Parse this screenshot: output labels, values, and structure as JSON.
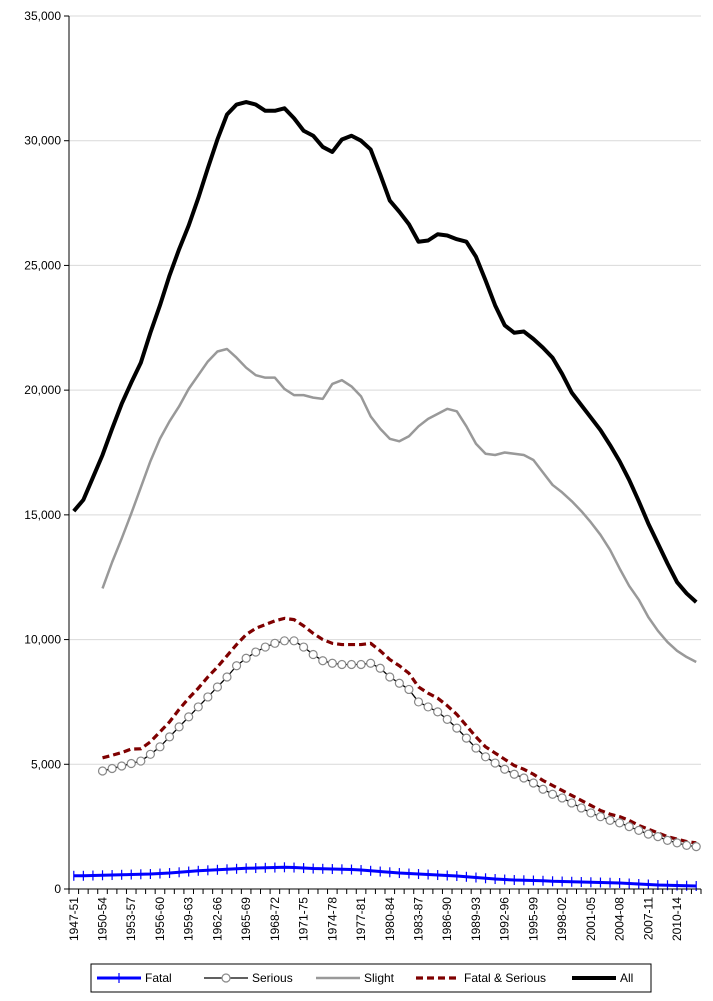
{
  "chart_data": {
    "type": "line",
    "title": "",
    "xlabel": "",
    "ylabel": "",
    "ylim": [
      0,
      35000
    ],
    "yticks": [
      "0",
      "5,000",
      "10,000",
      "15,000",
      "20,000",
      "25,000",
      "30,000",
      "35,000"
    ],
    "ytick_values": [
      0,
      5000,
      10000,
      15000,
      20000,
      25000,
      30000,
      35000
    ],
    "grid": "horizontal",
    "legend_position": "bottom",
    "x": [
      "1947-51",
      "1948-52",
      "1949-53",
      "1950-54",
      "1951-55",
      "1952-56",
      "1953-57",
      "1954-58",
      "1955-59",
      "1956-60",
      "1957-61",
      "1958-62",
      "1959-63",
      "1960-64",
      "1961-65",
      "1962-66",
      "1963-67",
      "1964-68",
      "1965-69",
      "1966-70",
      "1967-71",
      "1968-72",
      "1969-73",
      "1970-74",
      "1971-75",
      "1972-76",
      "1973-77",
      "1974-78",
      "1975-79",
      "1976-80",
      "1977-81",
      "1978-82",
      "1979-83",
      "1980-84",
      "1981-85",
      "1982-86",
      "1983-87",
      "1984-88",
      "1985-89",
      "1986-90",
      "1987-91",
      "1988-92",
      "1989-93",
      "1990-94",
      "1991-95",
      "1992-96",
      "1993-97",
      "1994-98",
      "1995-99",
      "1996-00",
      "1997-01",
      "1998-02",
      "1999-03",
      "2000-04",
      "2001-05",
      "2002-06",
      "2003-07",
      "2004-08",
      "2005-09",
      "2006-10",
      "2007-11",
      "2008-12",
      "2009-13",
      "2010-14",
      "2011-15",
      "2012-16"
    ],
    "xtick_labels": [
      "1947-51",
      "1950-54",
      "1953-57",
      "1956-60",
      "1959-63",
      "1962-66",
      "1965-69",
      "1968-72",
      "1971-75",
      "1974-78",
      "1977-81",
      "1980-84",
      "1983-87",
      "1986-90",
      "1989-93",
      "1992-96",
      "1995-99",
      "1998-02",
      "2001-05",
      "2004-08",
      "2007-11",
      "2010-14"
    ],
    "series": [
      {
        "name": "Fatal",
        "color": "#0000ff",
        "style": "solid-cross",
        "values": [
          530,
          530,
          540,
          550,
          560,
          570,
          580,
          590,
          600,
          620,
          640,
          670,
          700,
          730,
          750,
          770,
          790,
          810,
          830,
          840,
          850,
          860,
          870,
          860,
          840,
          820,
          810,
          800,
          790,
          780,
          760,
          730,
          700,
          670,
          640,
          620,
          600,
          580,
          560,
          540,
          520,
          490,
          460,
          430,
          400,
          380,
          360,
          350,
          340,
          330,
          310,
          300,
          290,
          280,
          270,
          260,
          250,
          240,
          220,
          200,
          180,
          160,
          150,
          140,
          130,
          120
        ]
      },
      {
        "name": "Serious",
        "color": "#000000",
        "style": "line-circle",
        "values": [
          null,
          null,
          null,
          4730,
          4830,
          4930,
          5030,
          5130,
          5400,
          5700,
          6100,
          6500,
          6900,
          7300,
          7700,
          8100,
          8500,
          8950,
          9250,
          9500,
          9700,
          9850,
          9950,
          9950,
          9700,
          9400,
          9150,
          9050,
          9000,
          9000,
          9000,
          9050,
          8850,
          8500,
          8250,
          8000,
          7500,
          7300,
          7100,
          6800,
          6450,
          6050,
          5650,
          5300,
          5050,
          4800,
          4600,
          4450,
          4250,
          4000,
          3800,
          3650,
          3450,
          3250,
          3050,
          2900,
          2750,
          2650,
          2500,
          2350,
          2200,
          2100,
          1950,
          1850,
          1750,
          1700
        ]
      },
      {
        "name": "Slight",
        "color": "#999999",
        "style": "solid",
        "values": [
          null,
          null,
          null,
          12050,
          13100,
          14050,
          15050,
          16100,
          17150,
          18050,
          18750,
          19350,
          20050,
          20600,
          21150,
          21550,
          21650,
          21300,
          20900,
          20600,
          20500,
          20500,
          20050,
          19800,
          19800,
          19700,
          19650,
          20250,
          20400,
          20150,
          19750,
          18950,
          18450,
          18050,
          17950,
          18150,
          18550,
          18850,
          19050,
          19250,
          19150,
          18550,
          17850,
          17450,
          17400,
          17500,
          17450,
          17400,
          17200,
          16700,
          16200,
          15900,
          15550,
          15150,
          14700,
          14200,
          13600,
          12850,
          12150,
          11600,
          10900,
          10350,
          9900,
          9550,
          9300,
          9100
        ]
      },
      {
        "name": "Fatal & Serious",
        "color": "#7f0000",
        "style": "dashed",
        "values": [
          null,
          null,
          null,
          5260,
          5360,
          5470,
          5610,
          5620,
          5900,
          6300,
          6700,
          7200,
          7650,
          8050,
          8500,
          8900,
          9350,
          9800,
          10200,
          10450,
          10600,
          10750,
          10850,
          10800,
          10550,
          10250,
          10000,
          9850,
          9800,
          9800,
          9800,
          9850,
          9550,
          9200,
          8950,
          8650,
          8100,
          7850,
          7650,
          7350,
          7000,
          6550,
          6100,
          5700,
          5450,
          5200,
          4950,
          4800,
          4600,
          4350,
          4150,
          3950,
          3750,
          3550,
          3350,
          3150,
          3000,
          2900,
          2750,
          2550,
          2400,
          2250,
          2100,
          2000,
          1900,
          1850
        ]
      },
      {
        "name": "All",
        "color": "#000000",
        "style": "solid-bold",
        "values": [
          15150,
          15600,
          16500,
          17400,
          18450,
          19450,
          20300,
          21100,
          22300,
          23400,
          24600,
          25650,
          26600,
          27700,
          28900,
          30050,
          31050,
          31450,
          31550,
          31450,
          31200,
          31200,
          31300,
          30900,
          30400,
          30200,
          29750,
          29550,
          30050,
          30200,
          30000,
          29650,
          28650,
          27600,
          27150,
          26650,
          25950,
          26000,
          26250,
          26200,
          26050,
          25950,
          25350,
          24400,
          23400,
          22600,
          22300,
          22350,
          22050,
          21700,
          21300,
          20650,
          19900,
          19400,
          18900,
          18400,
          17800,
          17150,
          16400,
          15550,
          14650,
          13850,
          13050,
          12300,
          11850,
          11500
        ]
      }
    ]
  }
}
